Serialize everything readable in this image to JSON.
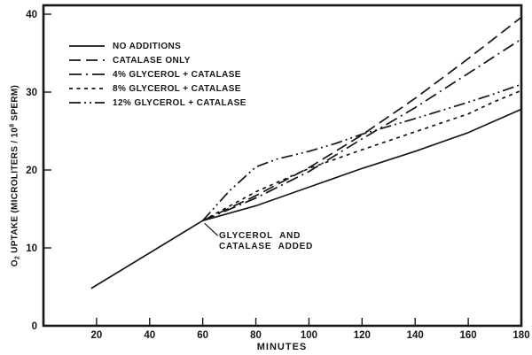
{
  "figure": {
    "background": "#ffffff",
    "ink": "#161616"
  },
  "chart_data": {
    "type": "line",
    "xlabel": "MINUTES",
    "ylabel": {
      "pre": "O",
      "sub": "2",
      "mid": " UPTAKE (MICROLITERS / 10",
      "sup": "8",
      "post": " SPERM)"
    },
    "xlim": [
      0,
      180
    ],
    "ylim": [
      0,
      41.14
    ],
    "x_ticks": [
      20,
      40,
      60,
      80,
      100,
      120,
      140,
      160,
      180
    ],
    "y_ticks": [
      0,
      10,
      20,
      30,
      40
    ],
    "grid": false,
    "legend_position": "upper-left",
    "common_segment": {
      "x": [
        18,
        60
      ],
      "y": [
        4.8,
        13.5
      ]
    },
    "series": [
      {
        "name": "NO ADDITIONS",
        "dash": "solid",
        "x": [
          60,
          80,
          100,
          120,
          140,
          160,
          180
        ],
        "y": [
          13.5,
          15.4,
          17.8,
          20.2,
          22.4,
          24.8,
          27.8
        ]
      },
      {
        "name": "CATALASE ONLY",
        "dash": "long-dash",
        "x": [
          60,
          80,
          100,
          120,
          140,
          160,
          180
        ],
        "y": [
          13.5,
          16.7,
          20.3,
          24.5,
          29.2,
          34.3,
          39.6
        ]
      },
      {
        "name": "4% GLYCEROL + CATALASE",
        "dash": "dash-dot",
        "x": [
          60,
          80,
          100,
          120,
          140,
          160,
          180
        ],
        "y": [
          13.5,
          16.4,
          19.8,
          24.0,
          28.0,
          32.4,
          36.8
        ]
      },
      {
        "name": "8% GLYCEROL + CATALASE",
        "dash": "short-dash",
        "x": [
          60,
          80,
          100,
          120,
          140,
          160,
          170,
          180
        ],
        "y": [
          13.5,
          17.2,
          20.2,
          22.6,
          24.9,
          27.2,
          28.8,
          30.2
        ]
      },
      {
        "name": "12% GLYCEROL + CATALASE",
        "dash": "dash-dot-dot",
        "x": [
          60,
          70,
          80,
          88,
          100,
          110,
          120,
          140,
          160,
          170,
          180
        ],
        "y": [
          13.5,
          17.3,
          20.4,
          21.4,
          22.4,
          23.4,
          24.6,
          26.6,
          28.7,
          29.8,
          31.0
        ]
      }
    ],
    "annotation": {
      "line1": "GLYCEROL AND",
      "line2": "CATALASE ADDED",
      "at_x": 60,
      "at_y": 13.5
    }
  }
}
